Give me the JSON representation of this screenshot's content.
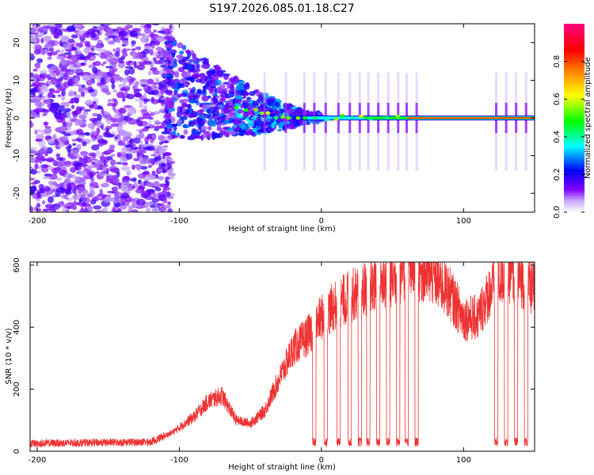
{
  "chart_data": [
    {
      "type": "heatmap",
      "title": "S197.2026.085.01.18.C27",
      "xlabel": "Height of straight line (km)",
      "ylabel": "Frequency (Hz)",
      "xlim": [
        -205,
        150
      ],
      "ylim": [
        -25,
        25
      ],
      "xticks": [
        -200,
        -100,
        0,
        100
      ],
      "yticks": [
        -20,
        -10,
        0,
        10,
        20
      ],
      "colorbar": {
        "label": "Normalized spectral amplitude",
        "range": [
          0.0,
          1.0
        ],
        "ticks": [
          0.0,
          0.2,
          0.4,
          0.6,
          0.8
        ],
        "tick_labels": [
          "0.0",
          "0.2",
          "0.4",
          "0.6",
          "0.8"
        ],
        "colormap": [
          "#ffffff",
          "#8000ff",
          "#0000ff",
          "#00ffff",
          "#00ff00",
          "#ffff00",
          "#ff8000",
          "#ff0000",
          "#ff0080"
        ]
      },
      "description_points": {
        "noise_region_x": [
          -205,
          -110
        ],
        "converging_region_x": [
          -110,
          0
        ],
        "steady_line_x": [
          0,
          150
        ],
        "steady_frequency_hz": 0,
        "trend": [
          [
            -110,
            8
          ],
          [
            -90,
            6
          ],
          [
            -70,
            4
          ],
          [
            -50,
            2
          ],
          [
            -30,
            0.5
          ],
          [
            0,
            0
          ],
          [
            60,
            0
          ],
          [
            100,
            0
          ],
          [
            150,
            0
          ]
        ]
      }
    },
    {
      "type": "line",
      "xlabel": "Height of straight line (km)",
      "ylabel": "SNR (10 * v/v)",
      "xlim": [
        -205,
        150
      ],
      "ylim": [
        0,
        610
      ],
      "xticks": [
        -200,
        -100,
        0,
        100
      ],
      "yticks": [
        0,
        200,
        400,
        600
      ],
      "color": "#ee3333",
      "series": [
        {
          "name": "SNR",
          "envelope_x": [
            -205,
            -120,
            -105,
            -90,
            -80,
            -70,
            -60,
            -50,
            -40,
            -30,
            -20,
            -10,
            0,
            10,
            20,
            30,
            40,
            50,
            60,
            70,
            80,
            90,
            100,
            110,
            120,
            130,
            140,
            150
          ],
          "envelope_y": [
            25,
            30,
            60,
            110,
            160,
            180,
            100,
            90,
            130,
            230,
            330,
            370,
            430,
            470,
            500,
            520,
            540,
            560,
            580,
            580,
            560,
            510,
            430,
            430,
            530,
            580,
            560,
            520
          ],
          "dropout_x": [
            -5,
            3,
            12,
            20,
            27,
            33,
            40,
            47,
            54,
            60,
            67,
            123,
            130,
            137,
            144
          ]
        }
      ]
    }
  ]
}
